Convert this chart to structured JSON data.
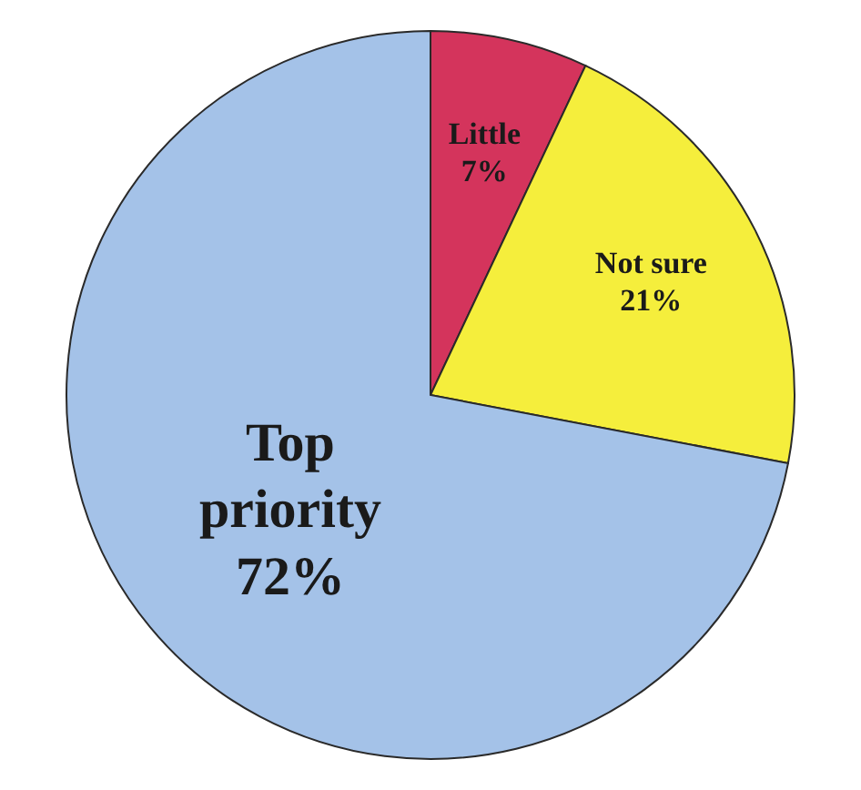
{
  "chart_data": {
    "type": "pie",
    "categories": [
      "Little",
      "Not sure",
      "Top priority"
    ],
    "values": [
      7,
      21,
      72
    ],
    "colors": [
      "#d4345c",
      "#f5ee3c",
      "#a4c2e8"
    ],
    "value_labels": [
      "7%",
      "21%",
      "72%"
    ]
  }
}
